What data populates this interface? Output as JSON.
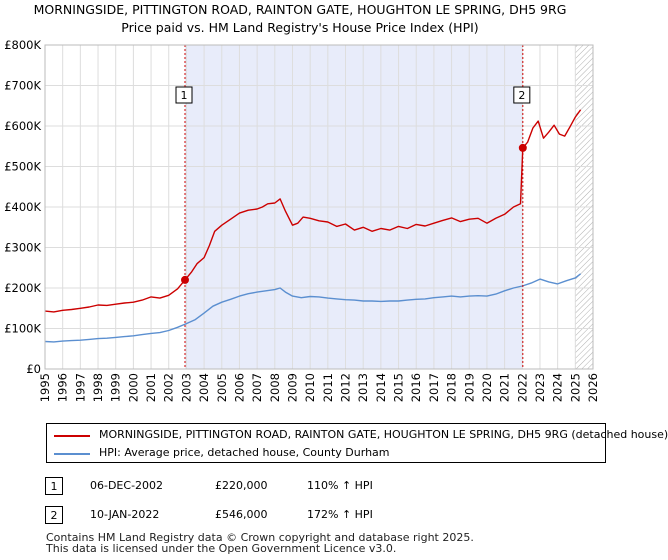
{
  "chart_data": {
    "type": "line",
    "title": "MORNINGSIDE, PITTINGTON ROAD, RAINTON GATE, HOUGHTON LE SPRING, DH5 9RG",
    "subtitle": "Price paid vs. HM Land Registry's House Price Index (HPI)",
    "xlim": [
      1995,
      2026
    ],
    "ylim": [
      0,
      800000
    ],
    "x_ticks": [
      "1995",
      "1996",
      "1997",
      "1998",
      "1999",
      "2000",
      "2001",
      "2002",
      "2003",
      "2004",
      "2005",
      "2006",
      "2007",
      "2008",
      "2009",
      "2010",
      "2011",
      "2012",
      "2013",
      "2014",
      "2015",
      "2016",
      "2017",
      "2018",
      "2019",
      "2020",
      "2021",
      "2022",
      "2023",
      "2024",
      "2025",
      "2026"
    ],
    "y_ticks": [
      {
        "value": 0,
        "label": "£0"
      },
      {
        "value": 100000,
        "label": "£100K"
      },
      {
        "value": 200000,
        "label": "£200K"
      },
      {
        "value": 300000,
        "label": "£300K"
      },
      {
        "value": 400000,
        "label": "£400K"
      },
      {
        "value": 500000,
        "label": "£500K"
      },
      {
        "value": 600000,
        "label": "£600K"
      },
      {
        "value": 700000,
        "label": "£700K"
      },
      {
        "value": 800000,
        "label": "£800K"
      }
    ],
    "shaded_period": {
      "from": 2002.92,
      "to": 2022.03
    },
    "future_hatch_from": 2025.0,
    "series": [
      {
        "name": "MORNINGSIDE, PITTINGTON ROAD, RAINTON GATE, HOUGHTON LE SPRING, DH5 9RG (detached house)",
        "color": "#cc0000",
        "x": [
          1995,
          1995.5,
          1996,
          1996.5,
          1997,
          1997.5,
          1998,
          1998.5,
          1999,
          1999.5,
          2000,
          2000.5,
          2001,
          2001.5,
          2002,
          2002.5,
          2002.92,
          2003.3,
          2003.6,
          2004,
          2004.3,
          2004.6,
          2005,
          2005.5,
          2006,
          2006.5,
          2007,
          2007.3,
          2007.6,
          2008,
          2008.3,
          2008.6,
          2009,
          2009.3,
          2009.6,
          2010,
          2010.5,
          2011,
          2011.5,
          2012,
          2012.5,
          2013,
          2013.5,
          2014,
          2014.5,
          2015,
          2015.5,
          2016,
          2016.5,
          2017,
          2017.5,
          2018,
          2018.5,
          2019,
          2019.5,
          2020,
          2020.5,
          2021,
          2021.5,
          2021.9,
          2022.03,
          2022.3,
          2022.6,
          2022.9,
          2023.2,
          2023.5,
          2023.8,
          2024.1,
          2024.4,
          2024.7,
          2025.0,
          2025.3
        ],
        "values": [
          143000,
          141000,
          145000,
          147000,
          150000,
          153000,
          158000,
          157000,
          160000,
          163000,
          165000,
          170000,
          178000,
          175000,
          182000,
          198000,
          220000,
          240000,
          260000,
          275000,
          305000,
          340000,
          355000,
          370000,
          385000,
          392000,
          395000,
          400000,
          408000,
          410000,
          420000,
          390000,
          355000,
          360000,
          375000,
          372000,
          366000,
          363000,
          352000,
          358000,
          343000,
          350000,
          340000,
          347000,
          343000,
          352000,
          347000,
          357000,
          353000,
          360000,
          367000,
          373000,
          364000,
          370000,
          372000,
          360000,
          372000,
          382000,
          400000,
          408000,
          546000,
          560000,
          595000,
          612000,
          570000,
          585000,
          602000,
          580000,
          575000,
          598000,
          622000,
          640000
        ]
      },
      {
        "name": "HPI: Average price, detached house, County Durham",
        "color": "#5b8fd0",
        "x": [
          1995,
          1995.5,
          1996,
          1996.5,
          1997,
          1997.5,
          1998,
          1998.5,
          1999,
          1999.5,
          2000,
          2000.5,
          2001,
          2001.5,
          2002,
          2002.5,
          2003,
          2003.5,
          2004,
          2004.5,
          2005,
          2005.5,
          2006,
          2006.5,
          2007,
          2007.5,
          2008,
          2008.3,
          2008.6,
          2009,
          2009.5,
          2010,
          2010.5,
          2011,
          2011.5,
          2012,
          2012.5,
          2013,
          2013.5,
          2014,
          2014.5,
          2015,
          2015.5,
          2016,
          2016.5,
          2017,
          2017.5,
          2018,
          2018.5,
          2019,
          2019.5,
          2020,
          2020.5,
          2021,
          2021.5,
          2022,
          2022.5,
          2023,
          2023.5,
          2024,
          2024.5,
          2025,
          2025.3
        ],
        "values": [
          68000,
          67000,
          69000,
          70000,
          71000,
          73000,
          75000,
          76000,
          78000,
          80000,
          82000,
          85000,
          88000,
          90000,
          95000,
          103000,
          112000,
          122000,
          138000,
          155000,
          165000,
          172000,
          180000,
          186000,
          190000,
          193000,
          196000,
          200000,
          190000,
          180000,
          176000,
          179000,
          178000,
          175000,
          173000,
          171000,
          170000,
          168000,
          168000,
          167000,
          168000,
          168000,
          170000,
          172000,
          173000,
          176000,
          178000,
          180000,
          178000,
          180000,
          181000,
          180000,
          185000,
          193000,
          200000,
          205000,
          212000,
          222000,
          215000,
          210000,
          218000,
          225000,
          235000
        ]
      }
    ],
    "sales": [
      {
        "label": "1",
        "date": "06-DEC-2002",
        "x": 2002.92,
        "price": 220000,
        "price_text": "£220,000",
        "hpi": "110% ↑ HPI"
      },
      {
        "label": "2",
        "date": "10-JAN-2022",
        "x": 2022.03,
        "price": 546000,
        "price_text": "£546,000",
        "hpi": "172% ↑ HPI"
      }
    ]
  },
  "legend": {
    "property_label": "MORNINGSIDE, PITTINGTON ROAD, RAINTON GATE, HOUGHTON LE SPRING, DH5 9RG (detached house)",
    "hpi_label": "HPI: Average price, detached house, County Durham"
  },
  "footer": {
    "line1": "Contains HM Land Registry data © Crown copyright and database right 2025.",
    "line2": "This data is licensed under the Open Government Licence v3.0."
  },
  "colors": {
    "property": "#cc0000",
    "hpi": "#5b8fd0",
    "shade": "#e8ecfa",
    "grid": "#dddddd"
  }
}
